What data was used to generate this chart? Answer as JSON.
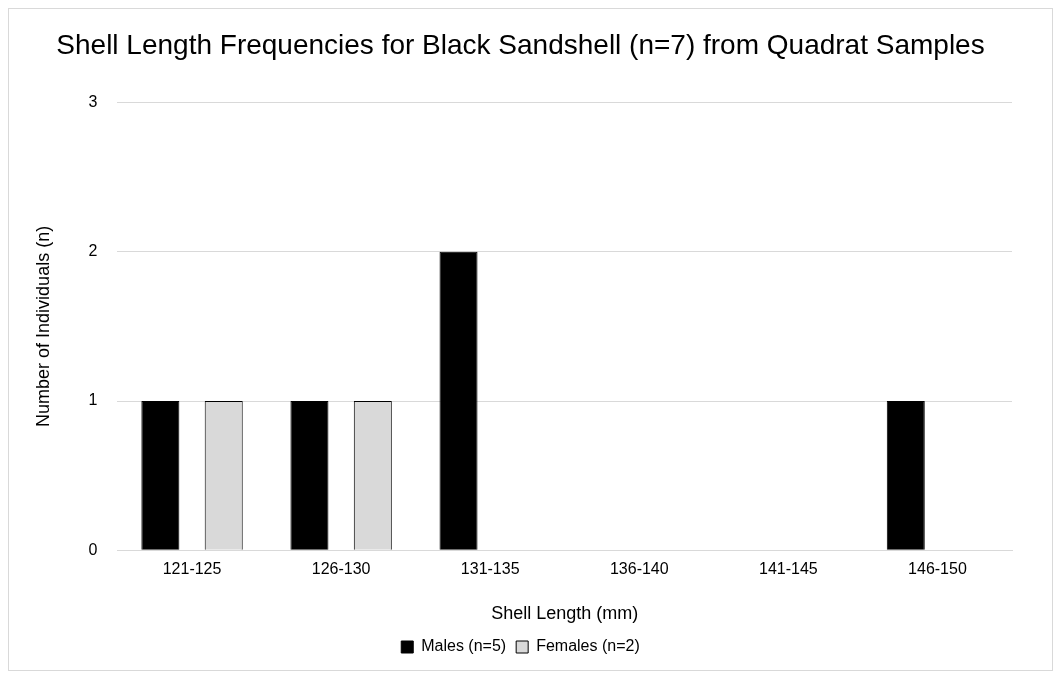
{
  "chart_data": {
    "type": "bar",
    "title": "Shell Length Frequencies for Black Sandshell (n=7) from Quadrat Samples",
    "xlabel": "Shell Length (mm)",
    "ylabel": "Number of Individuals (n)",
    "categories": [
      "121-125",
      "126-130",
      "131-135",
      "136-140",
      "141-145",
      "146-150"
    ],
    "series": [
      {
        "name": "Males (n=5)",
        "color": "#000000",
        "values": [
          1,
          1,
          2,
          0,
          0,
          1
        ]
      },
      {
        "name": "Females (n=2)",
        "color": "#d9d9d9",
        "values": [
          1,
          1,
          0,
          0,
          0,
          0
        ]
      }
    ],
    "ylim": [
      0,
      3
    ],
    "yticks": [
      0,
      1,
      2,
      3
    ],
    "grid": "y",
    "legend": "bottom"
  }
}
